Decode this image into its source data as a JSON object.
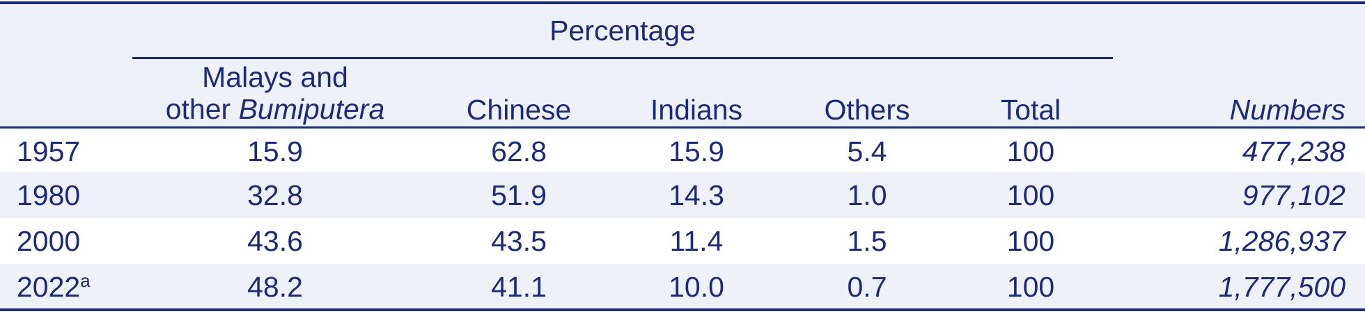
{
  "table": {
    "spanner": "Percentage",
    "headers": {
      "malays_line1": "Malays and",
      "malays_line2_prefix": "other ",
      "malays_line2_italic": "Bumiputera",
      "chinese": "Chinese",
      "indians": "Indians",
      "others": "Others",
      "total": "Total",
      "numbers": "Numbers"
    },
    "rows": [
      {
        "year": "1957",
        "note": "",
        "malays": "15.9",
        "chinese": "62.8",
        "indians": "15.9",
        "others": "5.4",
        "total": "100",
        "numbers": "477,238"
      },
      {
        "year": "1980",
        "note": "",
        "malays": "32.8",
        "chinese": "51.9",
        "indians": "14.3",
        "others": "1.0",
        "total": "100",
        "numbers": "977,102"
      },
      {
        "year": "2000",
        "note": "",
        "malays": "43.6",
        "chinese": "43.5",
        "indians": "11.4",
        "others": "1.5",
        "total": "100",
        "numbers": "1,286,937"
      },
      {
        "year": "2022",
        "note": "a",
        "malays": "48.2",
        "chinese": "41.1",
        "indians": "10.0",
        "others": "0.7",
        "total": "100",
        "numbers": "1,777,500"
      }
    ]
  },
  "colors": {
    "text": "#1b2a7a",
    "band": "#eef1f8",
    "background": "#ffffff"
  }
}
